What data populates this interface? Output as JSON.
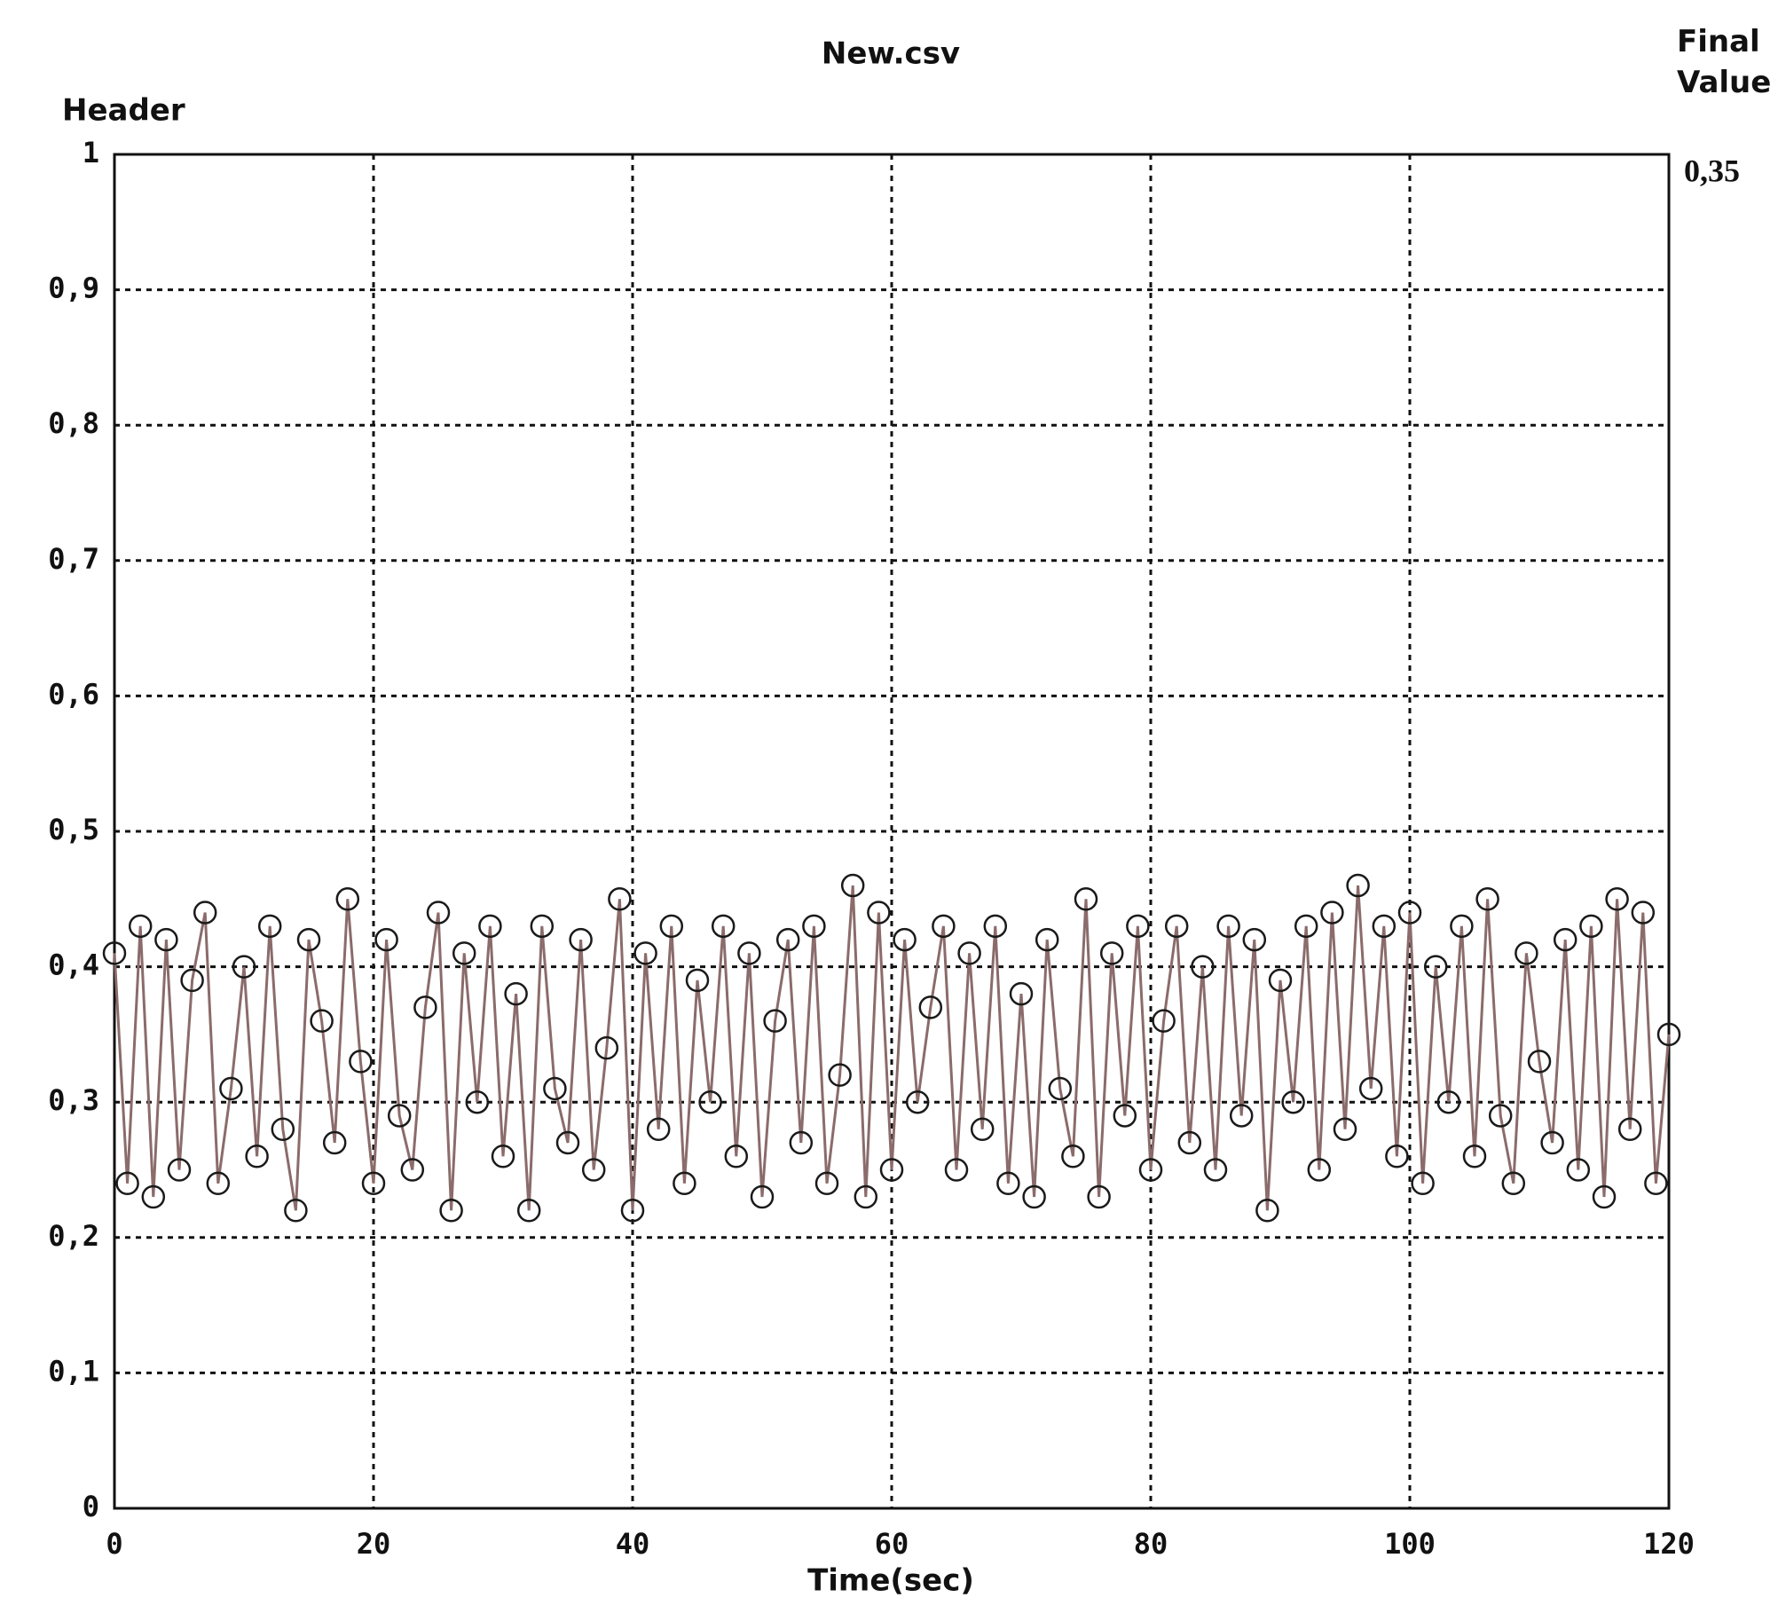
{
  "chart_data": {
    "type": "line",
    "title": "New.csv",
    "y_label": "Header",
    "x_label": "Time(sec)",
    "final_value_title": "Final Value",
    "final_value": "0,35",
    "x": [
      0,
      1,
      2,
      3,
      4,
      5,
      6,
      7,
      8,
      9,
      10,
      11,
      12,
      13,
      14,
      15,
      16,
      17,
      18,
      19,
      20,
      21,
      22,
      23,
      24,
      25,
      26,
      27,
      28,
      29,
      30,
      31,
      32,
      33,
      34,
      35,
      36,
      37,
      38,
      39,
      40,
      41,
      42,
      43,
      44,
      45,
      46,
      47,
      48,
      49,
      50,
      51,
      52,
      53,
      54,
      55,
      56,
      57,
      58,
      59,
      60,
      61,
      62,
      63,
      64,
      65,
      66,
      67,
      68,
      69,
      70,
      71,
      72,
      73,
      74,
      75,
      76,
      77,
      78,
      79,
      80,
      81,
      82,
      83,
      84,
      85,
      86,
      87,
      88,
      89,
      90,
      91,
      92,
      93,
      94,
      95,
      96,
      97,
      98,
      99,
      100,
      101,
      102,
      103,
      104,
      105,
      106,
      107,
      108,
      109,
      110,
      111,
      112,
      113,
      114,
      115,
      116,
      117,
      118,
      119,
      120
    ],
    "series": [
      {
        "color": "#8b6b6b",
        "marker_color": "#1a1a1a",
        "values": [
          0.41,
          0.24,
          0.43,
          0.23,
          0.42,
          0.25,
          0.39,
          0.44,
          0.24,
          0.31,
          0.4,
          0.26,
          0.43,
          0.28,
          0.22,
          0.42,
          0.36,
          0.27,
          0.45,
          0.33,
          0.24,
          0.42,
          0.29,
          0.25,
          0.37,
          0.44,
          0.22,
          0.41,
          0.3,
          0.43,
          0.26,
          0.38,
          0.22,
          0.43,
          0.31,
          0.27,
          0.42,
          0.25,
          0.34,
          0.45,
          0.22,
          0.41,
          0.28,
          0.43,
          0.24,
          0.39,
          0.3,
          0.43,
          0.26,
          0.41,
          0.23,
          0.36,
          0.42,
          0.27,
          0.43,
          0.24,
          0.32,
          0.46,
          0.23,
          0.44,
          0.25,
          0.42,
          0.3,
          0.37,
          0.43,
          0.25,
          0.41,
          0.28,
          0.43,
          0.24,
          0.38,
          0.23,
          0.42,
          0.31,
          0.26,
          0.45,
          0.23,
          0.41,
          0.29,
          0.43,
          0.25,
          0.36,
          0.43,
          0.27,
          0.4,
          0.25,
          0.43,
          0.29,
          0.42,
          0.22,
          0.39,
          0.3,
          0.43,
          0.25,
          0.44,
          0.28,
          0.46,
          0.31,
          0.43,
          0.26,
          0.44,
          0.24,
          0.4,
          0.3,
          0.43,
          0.26,
          0.45,
          0.29,
          0.24,
          0.41,
          0.33,
          0.27,
          0.42,
          0.25,
          0.43,
          0.23,
          0.45,
          0.28,
          0.44,
          0.24,
          0.35
        ]
      }
    ],
    "xlim": [
      0,
      120
    ],
    "xticks": [
      0,
      20,
      40,
      60,
      80,
      100,
      120
    ],
    "ylim": [
      0,
      1
    ],
    "yticks": [
      0,
      {
        "value": 0.1,
        "label": "0,1"
      },
      {
        "value": 0.2,
        "label": "0,2"
      },
      {
        "value": 0.3,
        "label": "0,3"
      },
      {
        "value": 0.4,
        "label": "0,4"
      },
      {
        "value": 0.5,
        "label": "0,5"
      },
      {
        "value": 0.6,
        "label": "0,6"
      },
      {
        "value": 0.7,
        "label": "0,7"
      },
      {
        "value": 0.8,
        "label": "0,8"
      },
      {
        "value": 0.9,
        "label": "0,9"
      },
      1
    ],
    "grid": true
  }
}
